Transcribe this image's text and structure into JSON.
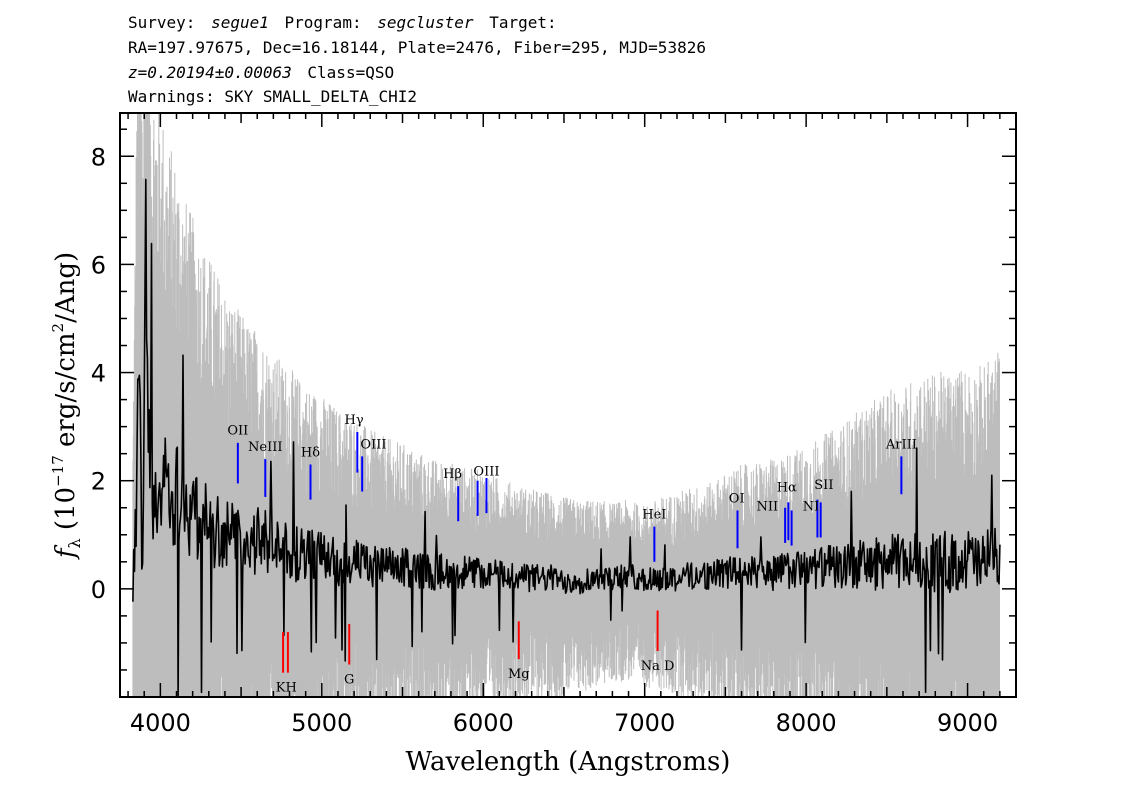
{
  "header": {
    "line1": {
      "survey_label": "Survey:",
      "survey": "segue1",
      "program_label": "Program:",
      "program": "segcluster",
      "target_label": "Target:"
    },
    "line2": "RA=197.97675, Dec=16.18144, Plate=2476, Fiber=295, MJD=53826",
    "line3": {
      "redshift": "z=0.20194±0.00063",
      "class": "Class=QSO"
    },
    "line4": "Warnings: SKY SMALL_DELTA_CHI2"
  },
  "chart_data": {
    "type": "line",
    "xlabel": "Wavelength (Angstroms)",
    "ylabel": "f_λ (10^-17 erg/s/cm^2/Ang)",
    "xlim": [
      3750,
      9300
    ],
    "ylim": [
      -2.0,
      8.8
    ],
    "xticks": [
      4000,
      5000,
      6000,
      7000,
      8000,
      9000
    ],
    "yticks": [
      0,
      2,
      4,
      6,
      8
    ],
    "x_tick_labels": [
      "4000",
      "5000",
      "6000",
      "7000",
      "8000",
      "9000"
    ],
    "y_tick_labels": [
      "0",
      "2",
      "4",
      "6",
      "8"
    ],
    "grid": false,
    "series": [
      {
        "role": "error",
        "color": "#bdbdbd",
        "x": [
          3830,
          3860,
          3890,
          3920,
          3960,
          4000,
          4050,
          4100,
          4150,
          4200,
          4300,
          4400,
          4500,
          4600,
          4700,
          4800,
          5000,
          5200,
          5400,
          5600,
          5800,
          6000,
          6200,
          6400,
          6600,
          6800,
          7000,
          7200,
          7400,
          7600,
          7800,
          8000,
          8200,
          8400,
          8600,
          8800,
          9000,
          9200
        ],
        "y": [
          2.8,
          8.8,
          8.8,
          8.2,
          7.7,
          7.2,
          6.6,
          6.2,
          5.8,
          5.5,
          5.0,
          4.6,
          4.2,
          3.9,
          3.6,
          3.4,
          3.0,
          2.7,
          2.4,
          2.2,
          2.0,
          1.9,
          1.7,
          1.6,
          1.5,
          1.4,
          1.4,
          1.6,
          1.7,
          2.0,
          2.1,
          2.3,
          2.6,
          3.0,
          3.3,
          3.5,
          3.6,
          3.8
        ]
      },
      {
        "role": "flux",
        "color": "#000000",
        "x": [
          3830,
          3850,
          3870,
          3890,
          3910,
          3930,
          3960,
          4000,
          4050,
          4100,
          4150,
          4200,
          4250,
          4300,
          4400,
          4500,
          4600,
          4700,
          4800,
          4900,
          5000,
          5100,
          5200,
          5300,
          5400,
          5500,
          5600,
          5700,
          5800,
          5900,
          6000,
          6100,
          6200,
          6300,
          6400,
          6500,
          6600,
          6700,
          6800,
          6900,
          7000,
          7100,
          7200,
          7300,
          7400,
          7500,
          7600,
          7700,
          7800,
          7900,
          8000,
          8100,
          8200,
          8300,
          8400,
          8500,
          8600,
          8700,
          8800,
          8900,
          9000,
          9100,
          9200
        ],
        "y": [
          0.2,
          1.8,
          3.5,
          1.0,
          6.8,
          2.4,
          2.0,
          1.9,
          1.7,
          1.8,
          1.5,
          1.4,
          1.3,
          1.2,
          1.0,
          0.9,
          0.9,
          0.8,
          0.7,
          0.6,
          0.6,
          0.5,
          0.5,
          0.4,
          0.4,
          0.4,
          0.35,
          0.3,
          0.35,
          0.3,
          0.3,
          0.25,
          0.25,
          0.2,
          0.2,
          0.15,
          0.15,
          0.2,
          0.2,
          0.25,
          0.15,
          0.2,
          0.2,
          0.25,
          0.25,
          0.3,
          0.3,
          0.3,
          0.3,
          0.35,
          0.35,
          0.4,
          0.4,
          0.45,
          0.45,
          0.5,
          0.5,
          0.55,
          0.5,
          0.5,
          0.55,
          0.45,
          0.7
        ]
      }
    ],
    "emission_lines": [
      {
        "name": "OII",
        "x": 4480,
        "y0": 1.95,
        "y1": 2.7,
        "color": "#0000ff"
      },
      {
        "name": "NeIII",
        "x": 4650,
        "y0": 1.7,
        "y1": 2.4,
        "color": "#0000ff"
      },
      {
        "name": "Hδ",
        "x": 4930,
        "y0": 1.65,
        "y1": 2.3,
        "color": "#0000ff"
      },
      {
        "name": "Hγ",
        "x": 5220,
        "y0": 2.15,
        "y1": 2.9,
        "color": "#0000ff"
      },
      {
        "name": "OIII",
        "x": 5250,
        "y0": 1.8,
        "y1": 2.45,
        "color": "#0000ff"
      },
      {
        "name": "Hβ",
        "x": 5845,
        "y0": 1.25,
        "y1": 1.9,
        "color": "#0000ff"
      },
      {
        "name": "OIII",
        "x": 5965,
        "y0": 1.35,
        "y1": 2.0,
        "color": "#0000ff"
      },
      {
        "name": "OIII",
        "x": 6020,
        "y0": 1.4,
        "y1": 2.05,
        "color": "#0000ff"
      },
      {
        "name": "HeI",
        "x": 7060,
        "y0": 0.5,
        "y1": 1.15,
        "color": "#0000ff"
      },
      {
        "name": "OI",
        "x": 7575,
        "y0": 0.75,
        "y1": 1.45,
        "color": "#0000ff"
      },
      {
        "name": "NII",
        "x": 7870,
        "y0": 0.85,
        "y1": 1.5,
        "color": "#0000ff"
      },
      {
        "name": "Hα",
        "x": 7890,
        "y0": 0.9,
        "y1": 1.6,
        "color": "#0000ff"
      },
      {
        "name": "NII",
        "x": 7910,
        "y0": 0.8,
        "y1": 1.45,
        "color": "#0000ff"
      },
      {
        "name": "SII",
        "x": 8070,
        "y0": 0.95,
        "y1": 1.65,
        "color": "#0000ff"
      },
      {
        "name": "SII",
        "x": 8090,
        "y0": 0.95,
        "y1": 1.6,
        "color": "#0000ff"
      },
      {
        "name": "ArIII",
        "x": 8590,
        "y0": 1.75,
        "y1": 2.45,
        "color": "#0000ff"
      }
    ],
    "emission_labels": [
      {
        "text": "OII",
        "x": 4480,
        "y": 2.85
      },
      {
        "text": "NeIII",
        "x": 4650,
        "y": 2.55
      },
      {
        "text": "Hδ",
        "x": 4930,
        "y": 2.45
      },
      {
        "text": "Hγ",
        "x": 5200,
        "y": 3.05
      },
      {
        "text": "OIII",
        "x": 5320,
        "y": 2.6
      },
      {
        "text": "Hβ",
        "x": 5810,
        "y": 2.05
      },
      {
        "text": "OIII",
        "x": 6020,
        "y": 2.1
      },
      {
        "text": "HeI",
        "x": 7060,
        "y": 1.3
      },
      {
        "text": "OI",
        "x": 7570,
        "y": 1.6
      },
      {
        "text": "NII",
        "x": 7760,
        "y": 1.45
      },
      {
        "text": "Hα",
        "x": 7880,
        "y": 1.8
      },
      {
        "text": "NI",
        "x": 8030,
        "y": 1.45
      },
      {
        "text": "SII",
        "x": 8110,
        "y": 1.85
      },
      {
        "text": "ArIII",
        "x": 8590,
        "y": 2.6
      }
    ],
    "absorption_lines": [
      {
        "name": "K",
        "x": 4760,
        "y0": -1.55,
        "y1": -0.8,
        "color": "#ff0000"
      },
      {
        "name": "H",
        "x": 4790,
        "y0": -1.55,
        "y1": -0.8,
        "color": "#ff0000"
      },
      {
        "name": "G",
        "x": 5170,
        "y0": -1.4,
        "y1": -0.65,
        "color": "#ff0000"
      },
      {
        "name": "Mg",
        "x": 6220,
        "y0": -1.3,
        "y1": -0.6,
        "color": "#ff0000"
      },
      {
        "name": "Na D",
        "x": 7080,
        "y0": -1.15,
        "y1": -0.4,
        "color": "#ff0000"
      }
    ],
    "absorption_labels": [
      {
        "text": "K",
        "x": 4745,
        "y": -1.9
      },
      {
        "text": "H",
        "x": 4810,
        "y": -1.9
      },
      {
        "text": "G",
        "x": 5170,
        "y": -1.75
      },
      {
        "text": "Mg",
        "x": 6220,
        "y": -1.65
      },
      {
        "text": "Na D",
        "x": 7080,
        "y": -1.5
      }
    ]
  }
}
